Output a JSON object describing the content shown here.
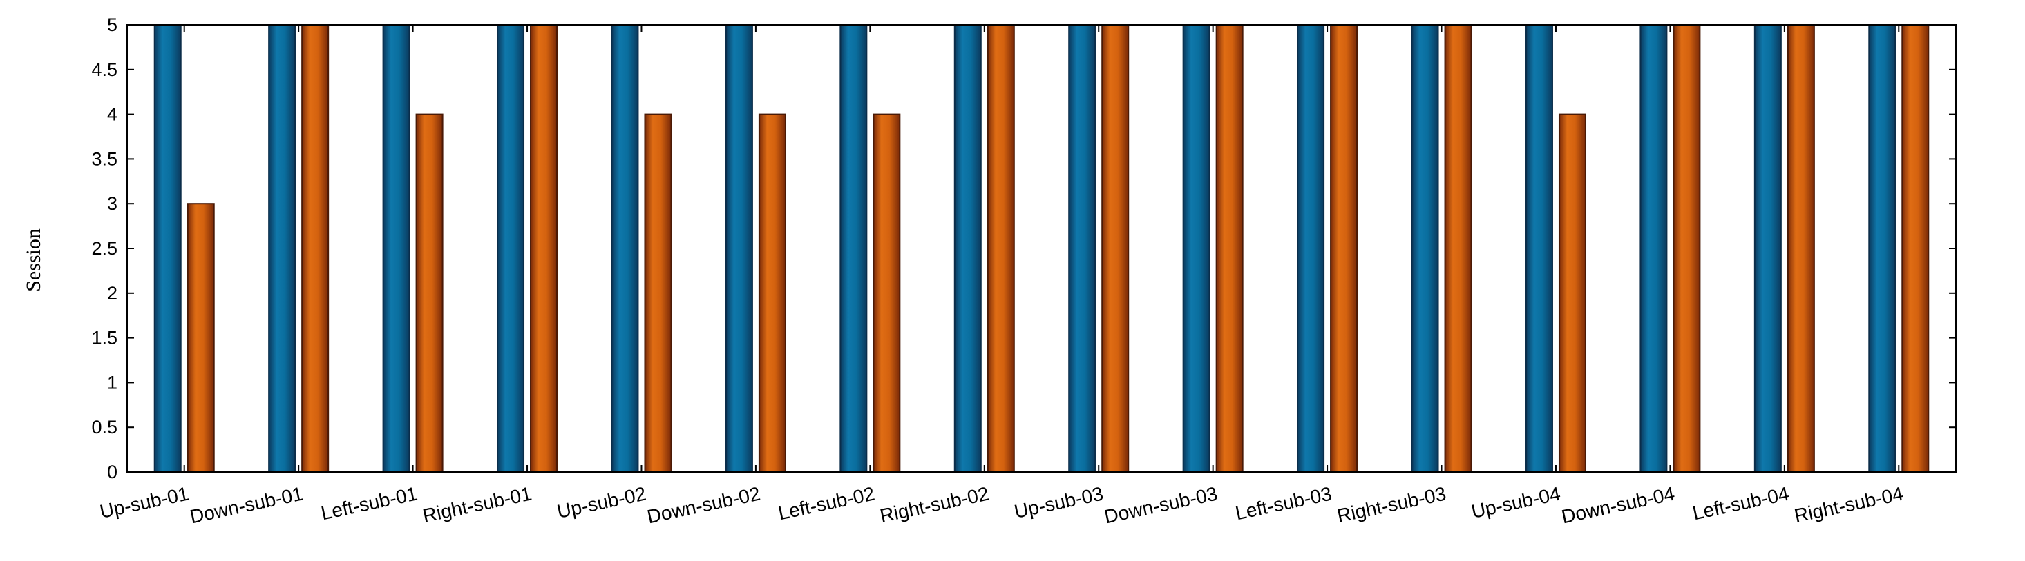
{
  "chart_data": {
    "type": "bar",
    "title": "",
    "xlabel": "",
    "ylabel": "Session",
    "ylim": [
      0,
      5
    ],
    "yticks": [
      "0",
      "0.5",
      "1",
      "1.5",
      "2",
      "2.5",
      "3",
      "3.5",
      "4",
      "4.5",
      "5"
    ],
    "grid": false,
    "legend": "none",
    "categories": [
      "Up-sub-01",
      "Down-sub-01",
      "Left-sub-01",
      "Right-sub-01",
      "Up-sub-02",
      "Down-sub-02",
      "Left-sub-02",
      "Right-sub-02",
      "Up-sub-03",
      "Down-sub-03",
      "Left-sub-03",
      "Right-sub-03",
      "Up-sub-04",
      "Down-sub-04",
      "Left-sub-04",
      "Right-sub-04"
    ],
    "series": [
      {
        "color": "#0a6e9e",
        "edge_color": "#0b2d4a",
        "values": [
          5,
          5,
          5,
          5,
          5,
          5,
          5,
          5,
          5,
          5,
          5,
          5,
          5,
          5,
          5,
          5
        ]
      },
      {
        "color": "#d4620f",
        "edge_color": "#4a1a06",
        "values": [
          3,
          5,
          4,
          5,
          4,
          4,
          4,
          5,
          5,
          5,
          5,
          5,
          4,
          5,
          5,
          5
        ]
      }
    ]
  }
}
